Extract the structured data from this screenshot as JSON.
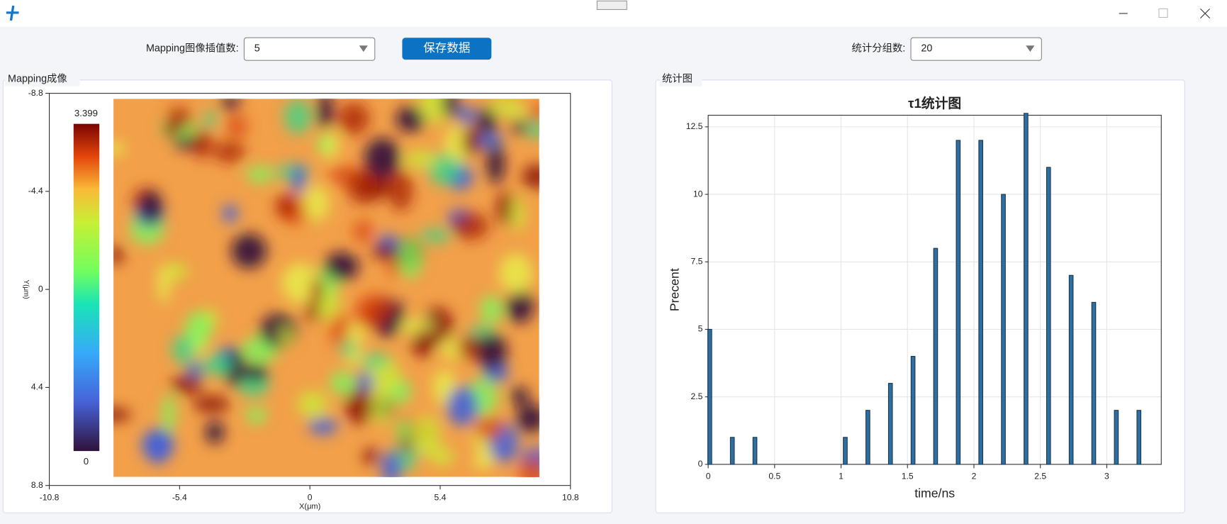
{
  "toolbar": {
    "interp_label": "Mapping图像插值数:",
    "interp_value": "5",
    "save_button": "保存数据",
    "groups_label": "统计分组数:",
    "groups_value": "20"
  },
  "mapping_panel": {
    "title": "Mapping成像",
    "chart_data": {
      "type": "heatmap",
      "xlabel": "X(μm)",
      "ylabel": "Y(μm)",
      "xlim": [
        -10.8,
        10.8
      ],
      "ylim": [
        -8.8,
        8.8
      ],
      "y_inverted": true,
      "xticks": [
        -10.8,
        -5.4,
        0,
        5.4,
        10.8
      ],
      "yticks": [
        -8.8,
        -4.4,
        0,
        4.4,
        8.8
      ],
      "colorbar_ticks": [
        0,
        3.399
      ]
    }
  },
  "stats_panel": {
    "title": "统计图",
    "chart_data": {
      "type": "bar",
      "title": "τ1统计图",
      "xlabel": "time/ns",
      "ylabel": "Precent",
      "color": "#2f6f9f",
      "grid": true,
      "x": [
        0,
        0.17,
        0.34,
        1.02,
        1.19,
        1.36,
        1.53,
        1.7,
        1.87,
        2.04,
        2.21,
        2.38,
        2.55,
        2.72,
        2.89,
        3.06,
        3.23
      ],
      "values": [
        5,
        1,
        1,
        1,
        2,
        3,
        4,
        8,
        12,
        12,
        10,
        13,
        11,
        7,
        6,
        2,
        2
      ],
      "xlim": [
        0,
        3.41
      ],
      "ylim": [
        0,
        12.93
      ],
      "xticks": [
        0,
        0.5,
        1,
        1.5,
        2,
        2.5,
        3
      ],
      "yticks": [
        0,
        2.5,
        5,
        7.5,
        10,
        12.5
      ]
    }
  }
}
